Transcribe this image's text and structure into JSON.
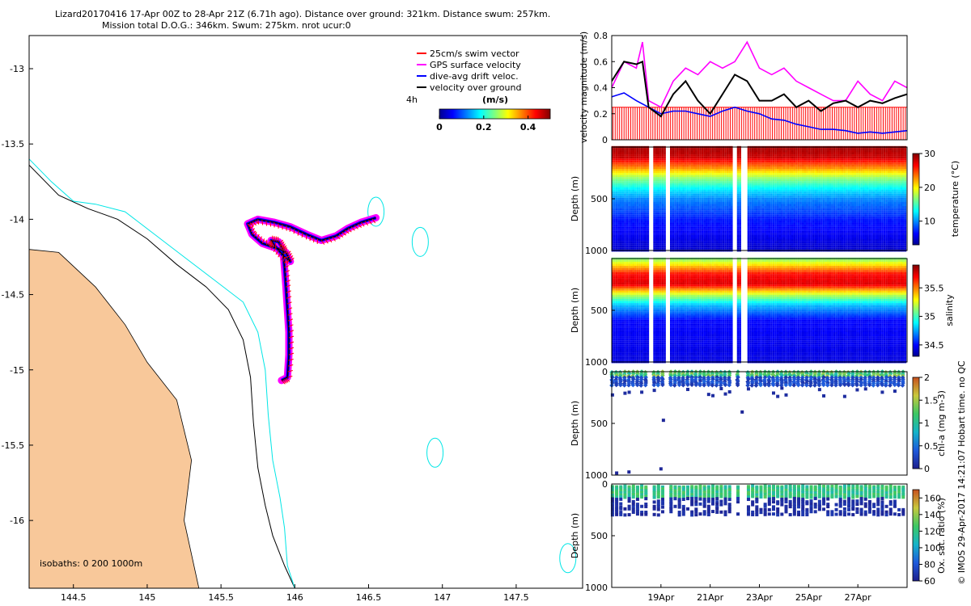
{
  "header": {
    "line1": "Lizard20170416 17-Apr 00Z to 28-Apr 21Z (6.71h ago). Distance over ground: 321km. Distance swum: 257km.",
    "line2": "Mission total D.O.G.: 346km. Swum: 275km. nrot ucur:0"
  },
  "credit": "© IMOS 29-Apr-2017 14:21:07 Hobart time. no QC",
  "colors": {
    "land": "#f8c89a",
    "coast": "#00e6e6",
    "swim": "#ff0000",
    "gps": "#ff00ff",
    "drift": "#0000ff",
    "dog": "#000000"
  },
  "chart_data": [
    {
      "type": "scatter",
      "name": "map",
      "xlim": [
        144.2,
        147.95
      ],
      "ylim": [
        -16.45,
        -12.78
      ],
      "x_ticks": [
        144.5,
        145,
        145.5,
        146,
        146.5,
        147,
        147.5
      ],
      "x_tick_labels": [
        "144.5",
        "145",
        "145.5",
        "146",
        "146.5",
        "147",
        "147.5"
      ],
      "y_ticks": [
        -13,
        -13.5,
        -14,
        -14.5,
        -15,
        -15.5,
        -16
      ],
      "y_tick_labels": [
        "-13",
        "-13.5",
        "-14",
        "-14.5",
        "-15",
        "-15.5",
        "-16"
      ],
      "legend": [
        {
          "label": "25cm/s swim vector",
          "color": "#ff0000"
        },
        {
          "label": "GPS surface velocity",
          "color": "#ff00ff"
        },
        {
          "label": "dive-avg drift veloc.",
          "color": "#0000ff"
        },
        {
          "label": "velocity over ground",
          "color": "#000000"
        }
      ],
      "legend_position": "top-right",
      "scale_label": "4h",
      "colorbar": {
        "title": "(m/s)",
        "ticks": [
          0,
          0.2,
          0.4
        ],
        "tick_labels": [
          "0",
          "0.2",
          "0.4"
        ],
        "range": [
          0,
          0.5
        ]
      },
      "isobath_label": "isobaths: 0   200  1000m",
      "track": [
        [
          145.91,
          -15.07
        ],
        [
          145.95,
          -15.05
        ],
        [
          145.96,
          -14.9
        ],
        [
          145.96,
          -14.75
        ],
        [
          145.95,
          -14.6
        ],
        [
          145.94,
          -14.45
        ],
        [
          145.93,
          -14.32
        ],
        [
          145.92,
          -14.2
        ],
        [
          145.89,
          -14.15
        ],
        [
          145.84,
          -14.14
        ],
        [
          145.86,
          -14.17
        ],
        [
          145.92,
          -14.24
        ],
        [
          145.97,
          -14.28
        ],
        [
          145.94,
          -14.22
        ],
        [
          145.9,
          -14.2
        ],
        [
          145.78,
          -14.16
        ],
        [
          145.71,
          -14.1
        ],
        [
          145.68,
          -14.03
        ],
        [
          145.75,
          -14.0
        ],
        [
          145.86,
          -14.02
        ],
        [
          145.97,
          -14.05
        ],
        [
          146.08,
          -14.1
        ],
        [
          146.18,
          -14.14
        ],
        [
          146.28,
          -14.11
        ],
        [
          146.36,
          -14.06
        ],
        [
          146.45,
          -14.02
        ],
        [
          146.55,
          -13.99
        ]
      ],
      "coast_line": [
        [
          144.2,
          -13.6
        ],
        [
          144.35,
          -13.75
        ],
        [
          144.5,
          -13.88
        ],
        [
          144.65,
          -13.9
        ],
        [
          144.85,
          -13.95
        ],
        [
          145.05,
          -14.1
        ],
        [
          145.25,
          -14.25
        ],
        [
          145.45,
          -14.4
        ],
        [
          145.65,
          -14.55
        ],
        [
          145.75,
          -14.75
        ],
        [
          145.8,
          -15.0
        ],
        [
          145.82,
          -15.3
        ],
        [
          145.85,
          -15.6
        ],
        [
          145.9,
          -15.85
        ],
        [
          145.93,
          -16.05
        ],
        [
          145.95,
          -16.3
        ],
        [
          146.0,
          -16.45
        ]
      ],
      "isobath_1000": [
        [
          144.2,
          -13.64
        ],
        [
          144.4,
          -13.84
        ],
        [
          144.6,
          -13.93
        ],
        [
          144.8,
          -14.0
        ],
        [
          145.0,
          -14.13
        ],
        [
          145.2,
          -14.3
        ],
        [
          145.4,
          -14.45
        ],
        [
          145.55,
          -14.6
        ],
        [
          145.65,
          -14.8
        ],
        [
          145.7,
          -15.05
        ],
        [
          145.72,
          -15.35
        ],
        [
          145.75,
          -15.65
        ],
        [
          145.8,
          -15.9
        ],
        [
          145.85,
          -16.1
        ],
        [
          145.93,
          -16.3
        ],
        [
          146.0,
          -16.45
        ]
      ],
      "reefs": [
        [
          146.55,
          -13.95
        ],
        [
          146.85,
          -14.15
        ],
        [
          146.95,
          -15.55
        ],
        [
          147.85,
          -16.25
        ]
      ],
      "land": [
        [
          144.2,
          -14.2
        ],
        [
          144.4,
          -14.22
        ],
        [
          144.65,
          -14.45
        ],
        [
          144.85,
          -14.7
        ],
        [
          145.0,
          -14.95
        ],
        [
          145.2,
          -15.2
        ],
        [
          145.3,
          -15.6
        ],
        [
          145.25,
          -16.0
        ],
        [
          145.35,
          -16.45
        ],
        [
          144.2,
          -16.45
        ]
      ]
    },
    {
      "type": "line",
      "name": "velocity",
      "ylabel": "velocity magnitude (m/s)",
      "x_range": [
        17.0,
        29.0
      ],
      "ylim": [
        0,
        0.8
      ],
      "y_ticks": [
        0,
        0.2,
        0.4,
        0.6,
        0.8
      ],
      "y_tick_labels": [
        "0",
        "0.2",
        "0.4",
        "0.6",
        "0.8"
      ],
      "series": [
        {
          "color": "#ff00ff",
          "x": [
            17.0,
            17.5,
            18.0,
            18.25,
            18.5,
            19.0,
            19.5,
            20.0,
            20.5,
            21.0,
            21.5,
            22.0,
            22.5,
            23.0,
            23.5,
            24.0,
            24.5,
            25.0,
            25.5,
            26.0,
            26.5,
            27.0,
            27.5,
            28.0,
            28.5,
            29.0
          ],
          "values": [
            0.4,
            0.6,
            0.55,
            0.75,
            0.3,
            0.25,
            0.45,
            0.55,
            0.5,
            0.6,
            0.55,
            0.6,
            0.75,
            0.55,
            0.5,
            0.55,
            0.45,
            0.4,
            0.35,
            0.3,
            0.3,
            0.45,
            0.35,
            0.3,
            0.45,
            0.4
          ]
        },
        {
          "color": "#000000",
          "x": [
            17.0,
            17.5,
            18.0,
            18.25,
            18.5,
            19.0,
            19.5,
            20.0,
            20.5,
            21.0,
            21.5,
            22.0,
            22.5,
            23.0,
            23.5,
            24.0,
            24.5,
            25.0,
            25.5,
            26.0,
            26.5,
            27.0,
            27.5,
            28.0,
            28.5,
            29.0
          ],
          "values": [
            0.45,
            0.6,
            0.58,
            0.6,
            0.25,
            0.18,
            0.35,
            0.45,
            0.3,
            0.2,
            0.35,
            0.5,
            0.45,
            0.3,
            0.3,
            0.35,
            0.25,
            0.3,
            0.22,
            0.28,
            0.3,
            0.25,
            0.3,
            0.28,
            0.32,
            0.35
          ]
        },
        {
          "color": "#0000ff",
          "x": [
            17.0,
            17.5,
            18.0,
            18.5,
            19.0,
            19.5,
            20.0,
            20.5,
            21.0,
            21.5,
            22.0,
            22.5,
            23.0,
            23.5,
            24.0,
            24.5,
            25.0,
            25.5,
            26.0,
            26.5,
            27.0,
            27.5,
            28.0,
            28.5,
            29.0
          ],
          "values": [
            0.33,
            0.36,
            0.3,
            0.25,
            0.2,
            0.22,
            0.22,
            0.2,
            0.18,
            0.22,
            0.25,
            0.22,
            0.2,
            0.16,
            0.15,
            0.12,
            0.1,
            0.08,
            0.08,
            0.07,
            0.05,
            0.06,
            0.05,
            0.06,
            0.07
          ]
        },
        {
          "color": "#ff0000",
          "constant": 0.25
        }
      ]
    },
    {
      "type": "heatmap",
      "name": "temperature",
      "ylabel": "Depth (m)",
      "colorbar_label": "temperature (°C)",
      "colorbar_ticks": [
        10,
        20,
        30
      ],
      "colorbar_range": [
        3,
        30
      ],
      "depth_range": [
        0,
        1000
      ],
      "depth_ticks": [
        500,
        1000
      ],
      "depth_tick_labels": [
        "500",
        "1000"
      ],
      "profile": [
        [
          0,
          29
        ],
        [
          100,
          28
        ],
        [
          200,
          23
        ],
        [
          300,
          17
        ],
        [
          400,
          13
        ],
        [
          500,
          10
        ],
        [
          700,
          7
        ],
        [
          1000,
          5
        ]
      ]
    },
    {
      "type": "heatmap",
      "name": "salinity",
      "ylabel": "Depth (m)",
      "colorbar_label": "salinity",
      "colorbar_ticks": [
        34.5,
        35,
        35.5
      ],
      "colorbar_tick_labels": [
        "34.5",
        "35",
        "35.5"
      ],
      "colorbar_range": [
        34.3,
        35.9
      ],
      "depth_range": [
        0,
        1000
      ],
      "depth_ticks": [
        500,
        1000
      ],
      "depth_tick_labels": [
        "500",
        "1000"
      ],
      "profile": [
        [
          0,
          35.1
        ],
        [
          50,
          35.3
        ],
        [
          150,
          35.7
        ],
        [
          250,
          35.75
        ],
        [
          350,
          35.2
        ],
        [
          450,
          34.8
        ],
        [
          600,
          34.5
        ],
        [
          1000,
          34.45
        ]
      ]
    },
    {
      "type": "scatter",
      "name": "chla",
      "ylabel": "Depth (m)",
      "colorbar_label": "chl-a (mg m-3)",
      "colorbar_ticks": [
        0,
        0.5,
        1,
        1.5,
        2
      ],
      "colorbar_tick_labels": [
        "0",
        "0.5",
        "1",
        "1.5",
        "2"
      ],
      "colorbar_range": [
        0,
        2
      ],
      "depth_range": [
        0,
        1000
      ],
      "depth_ticks": [
        0,
        500,
        1000
      ],
      "depth_tick_labels": [
        "0",
        "500",
        "1000"
      ],
      "outliers": [
        [
          17.2,
          980
        ],
        [
          17.7,
          970
        ],
        [
          19.0,
          940
        ],
        [
          19.1,
          470
        ],
        [
          22.3,
          390
        ]
      ]
    },
    {
      "type": "scatter",
      "name": "oxygen",
      "ylabel": "Depth (m)",
      "colorbar_label": "Ox. sat. ratio (%)",
      "colorbar_ticks": [
        60,
        80,
        100,
        120,
        140,
        160
      ],
      "colorbar_tick_labels": [
        "60",
        "80",
        "100",
        "120",
        "140",
        "160"
      ],
      "colorbar_range": [
        60,
        170
      ],
      "depth_range": [
        0,
        1000
      ],
      "depth_ticks": [
        0,
        500,
        1000
      ],
      "depth_tick_labels": [
        "0",
        "500",
        "1000"
      ],
      "x_ticks": [
        19,
        21,
        23,
        25,
        27
      ],
      "x_tick_labels": [
        "19Apr",
        "21Apr",
        "23Apr",
        "25Apr",
        "27Apr"
      ]
    }
  ]
}
